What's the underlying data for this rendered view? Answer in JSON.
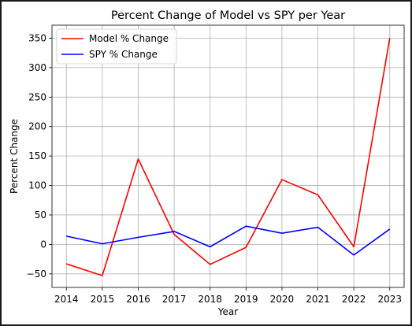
{
  "chart_data": {
    "type": "line",
    "title": "Percent Change of Model vs SPY per Year",
    "xlabel": "Year",
    "ylabel": "Percent Change",
    "x": [
      2014,
      2015,
      2016,
      2017,
      2018,
      2019,
      2020,
      2021,
      2022,
      2023
    ],
    "xlim": [
      2013.6,
      2023.4
    ],
    "ylim": [
      -73,
      372
    ],
    "yticks": [
      -50,
      0,
      50,
      100,
      150,
      200,
      250,
      300,
      350
    ],
    "grid": true,
    "legend_position": "upper-left",
    "series": [
      {
        "name": "Model % Change",
        "color": "#ff0000",
        "values": [
          -33,
          -53,
          145,
          17,
          -34,
          -5,
          110,
          84,
          -4,
          350
        ]
      },
      {
        "name": "SPY % Change",
        "color": "#0000ff",
        "values": [
          14,
          1,
          12,
          22,
          -4,
          31,
          19,
          29,
          -18,
          26
        ]
      }
    ]
  }
}
